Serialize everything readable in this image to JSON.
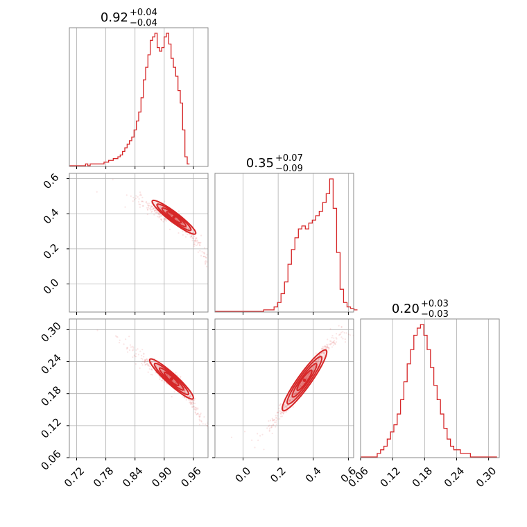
{
  "chart_data": {
    "type": "corner",
    "accent_color": "#d62728",
    "grid": true,
    "parameters": [
      {
        "title": {
          "value": "0.92",
          "plus": "+0.04",
          "minus": "−0.04"
        },
        "range": [
          0.705,
          0.99
        ],
        "ticks": [
          0.72,
          0.78,
          0.84,
          0.9,
          0.96
        ],
        "tick_labels": [
          "0.72",
          "0.78",
          "0.84",
          "0.90",
          "0.96"
        ],
        "hist": {
          "start": 0.705,
          "step": 0.00475,
          "counts": [
            0,
            0,
            0,
            0,
            0,
            0,
            0,
            1,
            0,
            1,
            1,
            1,
            1,
            1,
            1,
            2,
            2,
            3,
            3,
            4,
            4,
            5,
            6,
            8,
            10,
            12,
            14,
            16,
            20,
            25,
            30,
            38,
            48,
            55,
            62,
            70,
            72,
            74,
            66,
            64,
            66,
            72,
            74,
            68,
            60,
            55,
            50,
            42,
            35,
            20,
            5,
            1
          ]
        }
      },
      {
        "title": {
          "value": "0.35",
          "plus": "+0.07",
          "minus": "−0.09"
        },
        "range": [
          -0.16,
          0.63
        ],
        "ticks": [
          0.0,
          0.2,
          0.4,
          0.6
        ],
        "tick_labels": [
          "0.0",
          "0.2",
          "0.4",
          "0.6"
        ],
        "hist": {
          "start": -0.16,
          "step": 0.0198,
          "counts": [
            0,
            0,
            0,
            0,
            0,
            0,
            0,
            0,
            0,
            0,
            0,
            0,
            0,
            0,
            1,
            1,
            1,
            3,
            6,
            12,
            20,
            32,
            42,
            50,
            56,
            58,
            56,
            60,
            62,
            65,
            68,
            74,
            80,
            90,
            70,
            40,
            15,
            6,
            3,
            2,
            1
          ]
        }
      },
      {
        "title": {
          "value": "0.20",
          "plus": "+0.03",
          "minus": "−0.03"
        },
        "range": [
          0.06,
          0.32
        ],
        "ticks": [
          0.06,
          0.12,
          0.18,
          0.24,
          0.3
        ],
        "tick_labels": [
          "0.06",
          "0.12",
          "0.18",
          "0.24",
          "0.30"
        ],
        "hist": {
          "start": 0.06,
          "step": 0.00624,
          "counts": [
            0,
            0,
            0,
            0,
            0,
            1,
            2,
            3,
            5,
            7,
            9,
            12,
            16,
            21,
            26,
            30,
            34,
            36,
            37,
            34,
            30,
            25,
            20,
            16,
            12,
            8,
            5,
            3,
            2,
            2,
            1,
            1,
            1,
            0,
            0,
            0,
            0,
            0,
            0,
            0,
            0
          ]
        }
      }
    ],
    "pairs": [
      {
        "row": 1,
        "col": 0,
        "x_param": 0,
        "y_param": 1,
        "center": [
          0.92,
          0.35
        ],
        "ridge": [
          [
            0.72,
            0.6
          ],
          [
            0.78,
            0.56
          ],
          [
            0.84,
            0.48
          ],
          [
            0.88,
            0.43
          ],
          [
            0.92,
            0.38
          ],
          [
            0.95,
            0.3
          ],
          [
            0.975,
            0.21
          ],
          [
            0.99,
            0.13
          ]
        ]
      },
      {
        "row": 2,
        "col": 0,
        "x_param": 0,
        "y_param": 2,
        "center": [
          0.915,
          0.2
        ],
        "ridge": [
          [
            0.74,
            0.31
          ],
          [
            0.8,
            0.28
          ],
          [
            0.85,
            0.25
          ],
          [
            0.89,
            0.22
          ],
          [
            0.93,
            0.2
          ],
          [
            0.96,
            0.16
          ],
          [
            0.985,
            0.12
          ]
        ]
      },
      {
        "row": 2,
        "col": 1,
        "x_param": 1,
        "y_param": 2,
        "center": [
          0.35,
          0.205
        ],
        "ridge": [
          [
            0.12,
            0.1
          ],
          [
            0.2,
            0.14
          ],
          [
            0.3,
            0.18
          ],
          [
            0.38,
            0.22
          ],
          [
            0.46,
            0.26
          ],
          [
            0.56,
            0.29
          ]
        ]
      }
    ]
  }
}
